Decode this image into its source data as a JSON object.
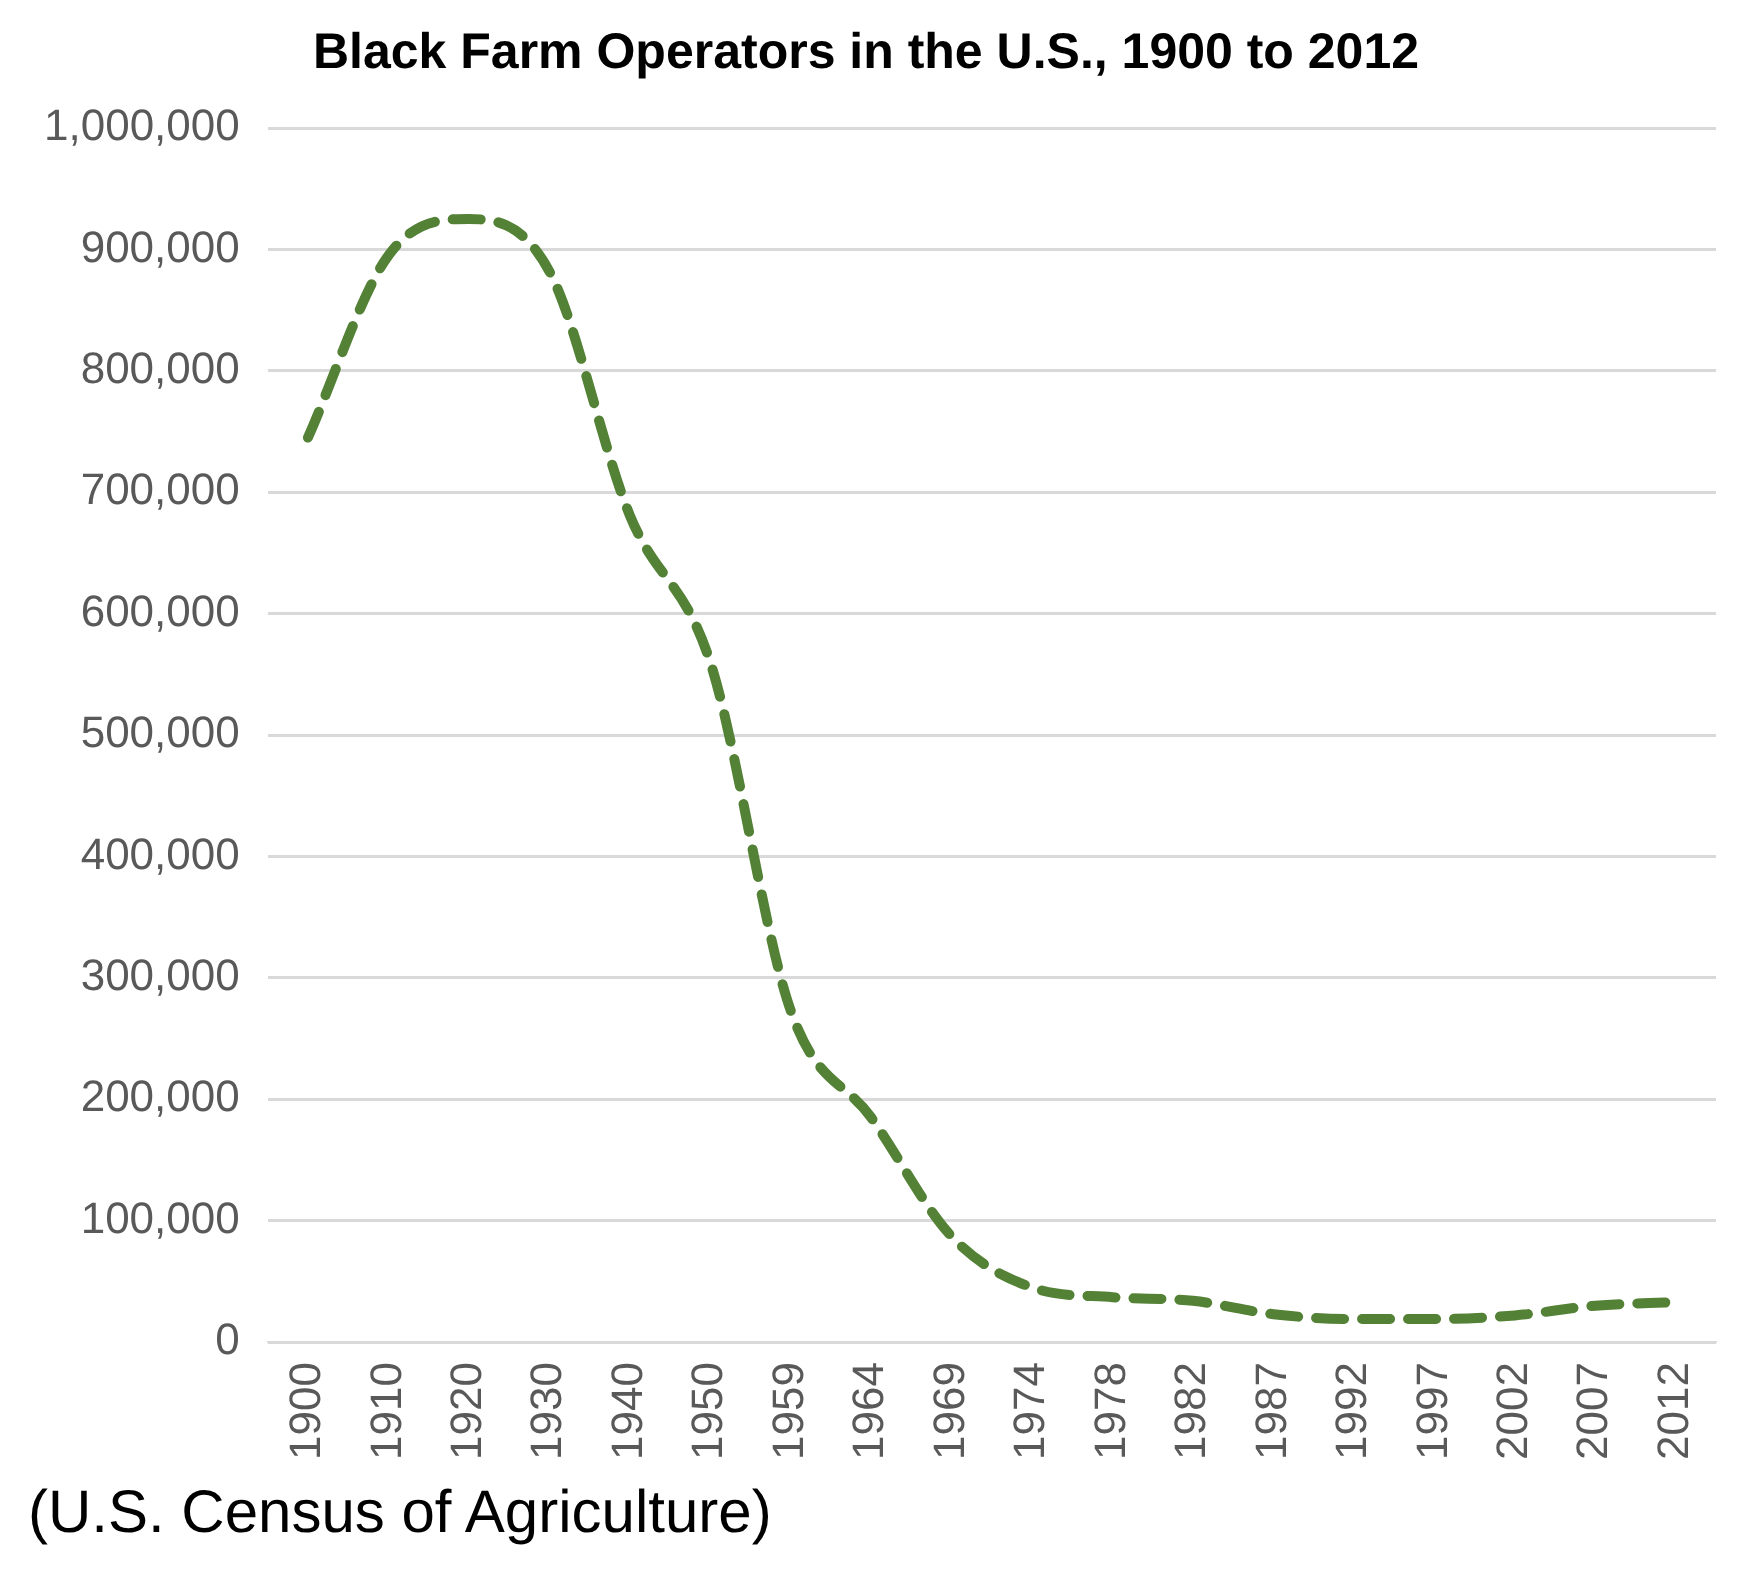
{
  "chart_data": {
    "type": "line",
    "title": "Black Farm Operators in the U.S., 1900 to 2012",
    "categories": [
      "1900",
      "1910",
      "1920",
      "1930",
      "1940",
      "1950",
      "1959",
      "1964",
      "1969",
      "1974",
      "1978",
      "1982",
      "1987",
      "1992",
      "1997",
      "2002",
      "2007",
      "2012"
    ],
    "series": [
      {
        "color": "#538135",
        "values": [
          745000,
          895000,
          925000,
          882000,
          681000,
          560000,
          273000,
          185000,
          87000,
          45000,
          37000,
          34000,
          23000,
          19000,
          19000,
          22000,
          30000,
          33000
        ]
      }
    ],
    "ylim": [
      0,
      1000000
    ],
    "yticks": [
      {
        "value": 0,
        "label": "0"
      },
      {
        "value": 100000,
        "label": "100,000"
      },
      {
        "value": 200000,
        "label": "200,000"
      },
      {
        "value": 300000,
        "label": "300,000"
      },
      {
        "value": 400000,
        "label": "400,000"
      },
      {
        "value": 500000,
        "label": "500,000"
      },
      {
        "value": 600000,
        "label": "600,000"
      },
      {
        "value": 700000,
        "label": "700,000"
      },
      {
        "value": 800000,
        "label": "800,000"
      },
      {
        "value": 900000,
        "label": "900,000"
      },
      {
        "value": 1000000,
        "label": "1,000,000"
      }
    ],
    "grid": "y",
    "legend": false,
    "marker": "none",
    "line_style": "dashed",
    "annotations": [
      "(U.S. Census of Agriculture)"
    ]
  }
}
